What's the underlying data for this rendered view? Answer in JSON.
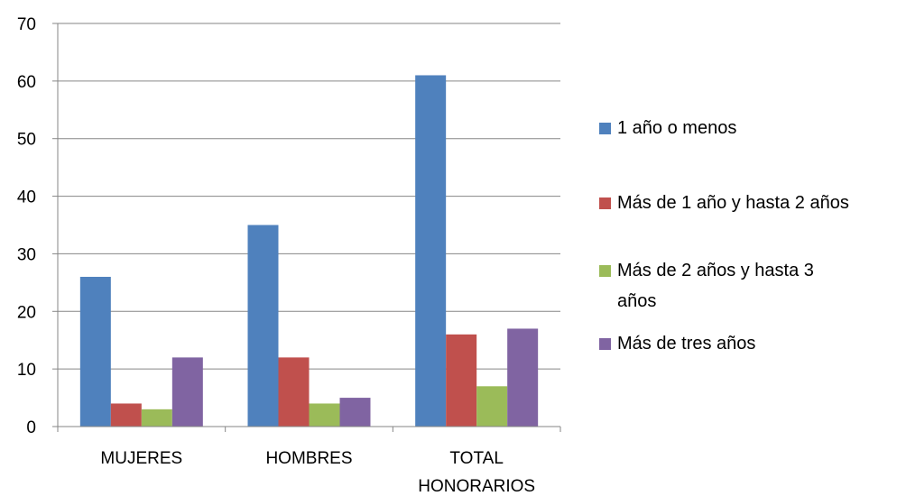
{
  "chart_data": {
    "type": "bar",
    "categories": [
      "MUJERES",
      "HOMBRES",
      "TOTAL HONORARIOS"
    ],
    "category_label_lines": [
      [
        "MUJERES"
      ],
      [
        "HOMBRES"
      ],
      [
        "TOTAL",
        "HONORARIOS"
      ]
    ],
    "series": [
      {
        "name": "1 año o menos",
        "color": "#4F81BD",
        "values": [
          26,
          35,
          61
        ]
      },
      {
        "name": "Más de 1 año y hasta 2 años",
        "color": "#C0504D",
        "values": [
          4,
          12,
          16
        ]
      },
      {
        "name": "Más de 2 años y hasta 3 años",
        "color": "#9BBB59",
        "values": [
          3,
          4,
          7
        ]
      },
      {
        "name": "Más de tres años",
        "color": "#8064A2",
        "values": [
          12,
          5,
          17
        ]
      }
    ],
    "legend_label_lines": [
      [
        "1 año o menos"
      ],
      [
        "Más de 1 año y hasta 2 años"
      ],
      [
        "Más de 2 años y hasta 3",
        "años"
      ],
      [
        "Más de tres años"
      ]
    ],
    "ylim": [
      0,
      70
    ],
    "yticks": [
      0,
      10,
      20,
      30,
      40,
      50,
      60,
      70
    ],
    "grid": true,
    "legend_position": "right",
    "title": "",
    "xlabel": "",
    "ylabel": ""
  }
}
